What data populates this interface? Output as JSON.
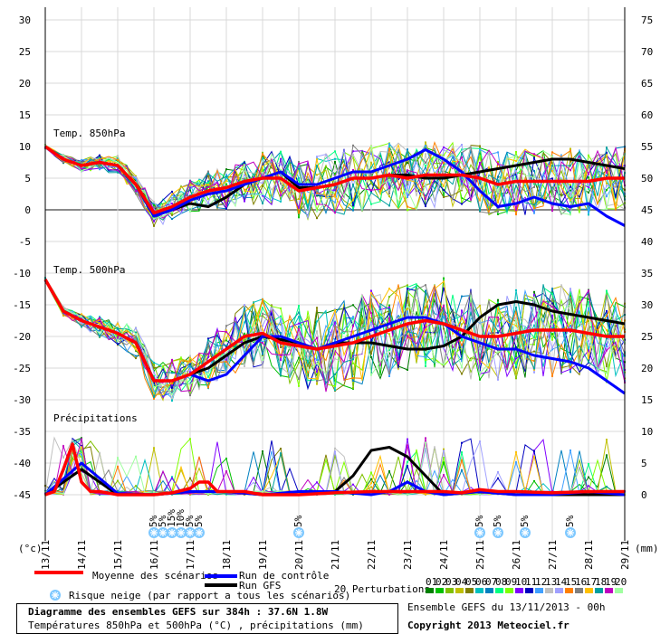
{
  "chart_data": {
    "type": "line",
    "title": "Diagramme des ensembles GEFS sur 384h : 37.6N 1.8W",
    "subtitle": "Températures 850hPa et 500hPa (°C) , précipitations (mm)",
    "left_axis_unit": "(°c)",
    "right_axis_unit": "(mm)",
    "left_ticks": [
      30,
      25,
      20,
      15,
      10,
      5,
      0,
      -5,
      -10,
      -15,
      -20,
      -25,
      -30,
      -35,
      -40,
      -45
    ],
    "right_ticks": [
      75,
      70,
      65,
      60,
      55,
      50,
      45,
      40,
      35,
      30,
      25,
      20,
      15,
      10,
      5,
      0
    ],
    "x_labels": [
      "13/11",
      "14/11",
      "15/11",
      "16/11",
      "17/11",
      "18/11",
      "19/11",
      "20/11",
      "21/11",
      "22/11",
      "23/11",
      "24/11",
      "25/11",
      "26/11",
      "27/11",
      "28/11",
      "29/11"
    ],
    "panels": {
      "t850": "Temp. 850hPa",
      "t500": "Temp. 500hPa",
      "precip": "Précipitations"
    },
    "snow_risk": [
      {
        "day": 3.0,
        "label": "5%"
      },
      {
        "day": 3.25,
        "label": "5%"
      },
      {
        "day": 3.5,
        "label": "15%"
      },
      {
        "day": 3.75,
        "label": "10%"
      },
      {
        "day": 4.0,
        "label": "5%"
      },
      {
        "day": 4.25,
        "label": "5%"
      },
      {
        "day": 7.0,
        "label": "5%"
      },
      {
        "day": 12.0,
        "label": "5%"
      },
      {
        "day": 12.5,
        "label": "5%"
      },
      {
        "day": 13.25,
        "label": "5%"
      },
      {
        "day": 14.5,
        "label": "5%"
      }
    ],
    "series": [
      {
        "name": "Moyenne des scénarios",
        "color": "#ff0000",
        "panel": "t850",
        "x": [
          0,
          0.5,
          1,
          1.5,
          2,
          2.5,
          3,
          3.5,
          4,
          4.5,
          5,
          5.5,
          6,
          6.5,
          7,
          7.5,
          8,
          8.5,
          9,
          9.5,
          10,
          10.5,
          11,
          11.5,
          12,
          12.5,
          13,
          13.5,
          14,
          14.5,
          15,
          15.5,
          16
        ],
        "y": [
          10,
          8,
          7,
          7.5,
          7,
          4,
          -0.5,
          0.5,
          2,
          3,
          3.5,
          4.5,
          5,
          5,
          3,
          3.5,
          4,
          5,
          5,
          5.5,
          5,
          5.5,
          5.5,
          5.5,
          5,
          4,
          4.5,
          4.5,
          4.5,
          4.5,
          4.5,
          5,
          5
        ]
      },
      {
        "name": "Moyenne des scénarios",
        "color": "#ff0000",
        "panel": "t500",
        "x": [
          0,
          0.5,
          1,
          1.5,
          2,
          2.5,
          3,
          3.5,
          4,
          4.5,
          5,
          5.5,
          6,
          6.5,
          7,
          7.5,
          8,
          8.5,
          9,
          9.5,
          10,
          10.5,
          11,
          11.5,
          12,
          12.5,
          13,
          13.5,
          14,
          14.5,
          15,
          15.5,
          16
        ],
        "y": [
          -11,
          -16,
          -17.5,
          -18.5,
          -19.5,
          -21,
          -27,
          -27,
          -26,
          -24,
          -22,
          -20,
          -19.5,
          -21,
          -21.5,
          -22,
          -21.5,
          -21,
          -20,
          -19,
          -18,
          -17.5,
          -18,
          -19,
          -20,
          -20,
          -19.5,
          -19,
          -19,
          -19,
          -19.5,
          -20,
          -20
        ]
      },
      {
        "name": "Moyenne des scénarios",
        "color": "#ff0000",
        "panel": "precip",
        "x": [
          0,
          0.25,
          0.5,
          0.75,
          1,
          1.25,
          1.5,
          2,
          2.5,
          3,
          3.5,
          4,
          4.25,
          4.5,
          4.75,
          5,
          5.5,
          6,
          7,
          8,
          9,
          10,
          11,
          11.5,
          12,
          12.5,
          13,
          14,
          15,
          16
        ],
        "y": [
          0,
          0.5,
          4,
          8,
          2,
          0.5,
          0.5,
          0,
          0,
          0,
          0.3,
          1,
          2,
          2,
          0.5,
          0.5,
          0.5,
          0,
          0,
          0.3,
          0.5,
          0.5,
          0.5,
          0.3,
          0.8,
          0.5,
          0.5,
          0.3,
          0.5,
          0.5
        ]
      },
      {
        "name": "Run de contrôle",
        "color": "#0000ff",
        "panel": "t850",
        "x": [
          0,
          0.5,
          1,
          1.5,
          2,
          2.5,
          3,
          3.5,
          4,
          4.5,
          5,
          5.5,
          6,
          6.5,
          7,
          7.5,
          8,
          8.5,
          9,
          9.5,
          10,
          10.5,
          11,
          11.5,
          12,
          12.5,
          13,
          13.5,
          14,
          14.5,
          15,
          15.5,
          16
        ],
        "y": [
          10,
          8,
          7,
          7.5,
          7,
          4,
          -1,
          0,
          1.5,
          2.5,
          3,
          4,
          5,
          6,
          4,
          4,
          5,
          6,
          6,
          7,
          8,
          9.5,
          8,
          6,
          3,
          0.5,
          1,
          2,
          1,
          0.5,
          1,
          -1,
          -2.5
        ]
      },
      {
        "name": "Run de contrôle",
        "color": "#0000ff",
        "panel": "t500",
        "x": [
          0,
          0.5,
          1,
          1.5,
          2,
          2.5,
          3,
          3.5,
          4,
          4.5,
          5,
          5.5,
          6,
          6.5,
          7,
          7.5,
          8,
          8.5,
          9,
          9.5,
          10,
          10.5,
          11,
          11.5,
          12,
          12.5,
          13,
          13.5,
          14,
          14.5,
          15,
          15.5,
          16
        ],
        "y": [
          -11,
          -16,
          -17.5,
          -18.5,
          -19.5,
          -21,
          -27,
          -27,
          -26,
          -27,
          -26,
          -23,
          -20,
          -20,
          -21,
          -22,
          -21,
          -20,
          -19,
          -18,
          -17,
          -17,
          -18,
          -20,
          -21,
          -22,
          -22,
          -23,
          -23.5,
          -24,
          -25,
          -27,
          -29
        ]
      },
      {
        "name": "Run de contrôle",
        "color": "#0000ff",
        "panel": "precip",
        "x": [
          0,
          1,
          2,
          3,
          4,
          5,
          6,
          7,
          8,
          9,
          9.5,
          10,
          10.5,
          11,
          12,
          13,
          14,
          15,
          16
        ],
        "y": [
          0,
          5,
          0.2,
          0,
          0.5,
          0.5,
          0,
          0.5,
          0.5,
          0,
          0.5,
          2,
          0.5,
          0,
          0.5,
          0,
          0,
          0.5,
          0
        ]
      },
      {
        "name": "Run GFS",
        "color": "#000000",
        "panel": "t850",
        "x": [
          0,
          0.5,
          1,
          1.5,
          2,
          2.5,
          3,
          3.5,
          4,
          4.5,
          5,
          5.5,
          6,
          6.5,
          7,
          7.5,
          8,
          8.5,
          9,
          9.5,
          10,
          10.5,
          11,
          11.5,
          12,
          12.5,
          13,
          13.5,
          14,
          14.5,
          15,
          15.5,
          16
        ],
        "y": [
          10,
          8,
          7,
          7.5,
          7,
          4,
          -1,
          0,
          1,
          0.5,
          2,
          4,
          5,
          6,
          3.5,
          3.5,
          4,
          5,
          5,
          5.5,
          5.5,
          5,
          5,
          5.5,
          6,
          6.5,
          7,
          7.5,
          8,
          8,
          7.5,
          7,
          6.5
        ]
      },
      {
        "name": "Run GFS",
        "color": "#000000",
        "panel": "t500",
        "x": [
          0,
          0.5,
          1,
          1.5,
          2,
          2.5,
          3,
          3.5,
          4,
          4.5,
          5,
          5.5,
          6,
          6.5,
          7,
          7.5,
          8,
          8.5,
          9,
          9.5,
          10,
          10.5,
          11,
          11.5,
          12,
          12.5,
          13,
          13.5,
          14,
          14.5,
          15,
          15.5,
          16
        ],
        "y": [
          -11,
          -16,
          -17.5,
          -18.5,
          -19.5,
          -21,
          -27,
          -27,
          -26,
          -25,
          -23,
          -21,
          -20,
          -20.5,
          -21,
          -22,
          -21,
          -21,
          -21,
          -21.5,
          -22,
          -22,
          -21.5,
          -20,
          -17,
          -15,
          -14.5,
          -15,
          -16,
          -16.5,
          -17,
          -17.5,
          -18
        ]
      },
      {
        "name": "Run GFS",
        "color": "#000000",
        "panel": "precip",
        "x": [
          0,
          1,
          2,
          3,
          4,
          5,
          6,
          7,
          8,
          8.5,
          9,
          9.5,
          10,
          10.5,
          11,
          12,
          13,
          14,
          15,
          16
        ],
        "y": [
          0,
          4,
          0,
          0,
          0.5,
          0.5,
          0,
          0,
          0.5,
          3,
          7,
          7.5,
          6,
          3,
          0,
          0.5,
          0,
          0,
          0,
          0
        ]
      }
    ],
    "legend": {
      "mean": "Moyenne des scénarios",
      "control": "Run de contrôle",
      "gfs": "Run GFS",
      "snow": "Risque neige (par rapport a tous les scénarios)",
      "perturbations": "20 Perturbations",
      "perturbation_numbers": [
        "01",
        "02",
        "03",
        "04",
        "05",
        "06",
        "07",
        "08",
        "09",
        "10",
        "11",
        "12",
        "13",
        "14",
        "15",
        "16",
        "17",
        "18",
        "19",
        "20"
      ],
      "perturbation_colors": [
        "#008000",
        "#00c000",
        "#80c000",
        "#c0c000",
        "#808000",
        "#00c0c0",
        "#0080c0",
        "#00ff80",
        "#80ff00",
        "#8000ff",
        "#0000c0",
        "#40a0ff",
        "#c0c0c0",
        "#a0a0ff",
        "#ff8000",
        "#808080",
        "#ffc000",
        "#00a0a0",
        "#c000c0",
        "#a0ffa0"
      ]
    },
    "footer": {
      "title": "Diagramme des ensembles GEFS sur 384h : 37.6N 1.8W",
      "subtitle": "Températures 850hPa et 500hPa (°C) , précipitations (mm)",
      "run": "Ensemble GEFS du 13/11/2013 - 00h",
      "copyright": "Copyright 2013 Meteociel.fr"
    }
  }
}
